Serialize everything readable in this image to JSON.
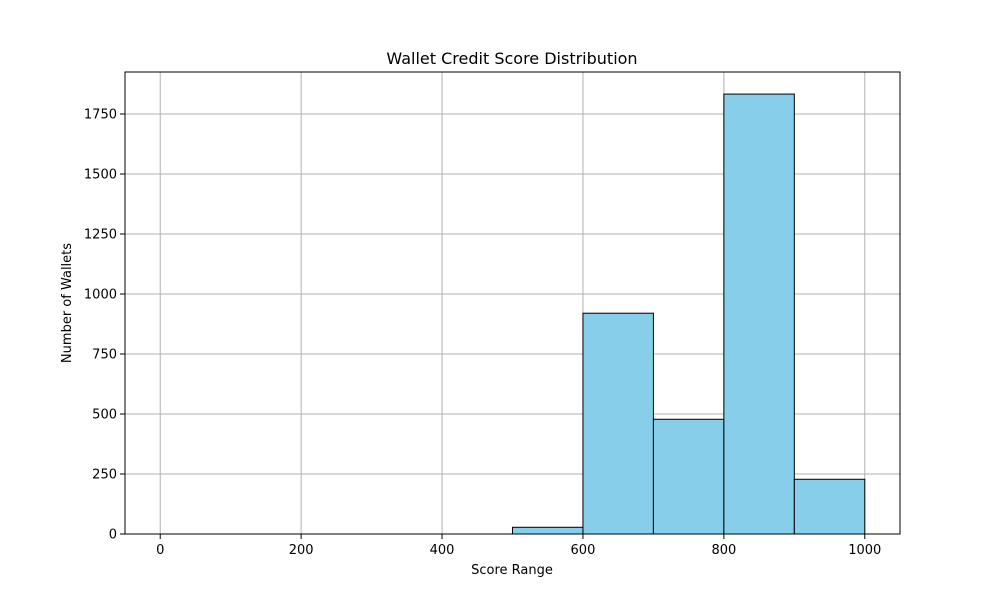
{
  "chart_data": {
    "type": "bar",
    "title": "Wallet Credit Score Distribution",
    "xlabel": "Score Range",
    "ylabel": "Number of Wallets",
    "bins": [
      {
        "start": 0,
        "end": 100,
        "count": 0
      },
      {
        "start": 100,
        "end": 200,
        "count": 0
      },
      {
        "start": 200,
        "end": 300,
        "count": 0
      },
      {
        "start": 300,
        "end": 400,
        "count": 0
      },
      {
        "start": 400,
        "end": 500,
        "count": 0
      },
      {
        "start": 500,
        "end": 600,
        "count": 28
      },
      {
        "start": 600,
        "end": 700,
        "count": 920
      },
      {
        "start": 700,
        "end": 800,
        "count": 478
      },
      {
        "start": 800,
        "end": 900,
        "count": 1833
      },
      {
        "start": 900,
        "end": 1000,
        "count": 228
      }
    ],
    "xlim": [
      -50,
      1050
    ],
    "ylim": [
      0,
      1925
    ],
    "xticks": [
      0,
      200,
      400,
      600,
      800,
      1000
    ],
    "yticks": [
      0,
      250,
      500,
      750,
      1000,
      1250,
      1500,
      1750
    ],
    "grid": true,
    "colors": {
      "bar_fill": "#87ceeb",
      "bar_edge": "#000000",
      "grid": "#b0b0b0",
      "axis": "#000000"
    }
  }
}
